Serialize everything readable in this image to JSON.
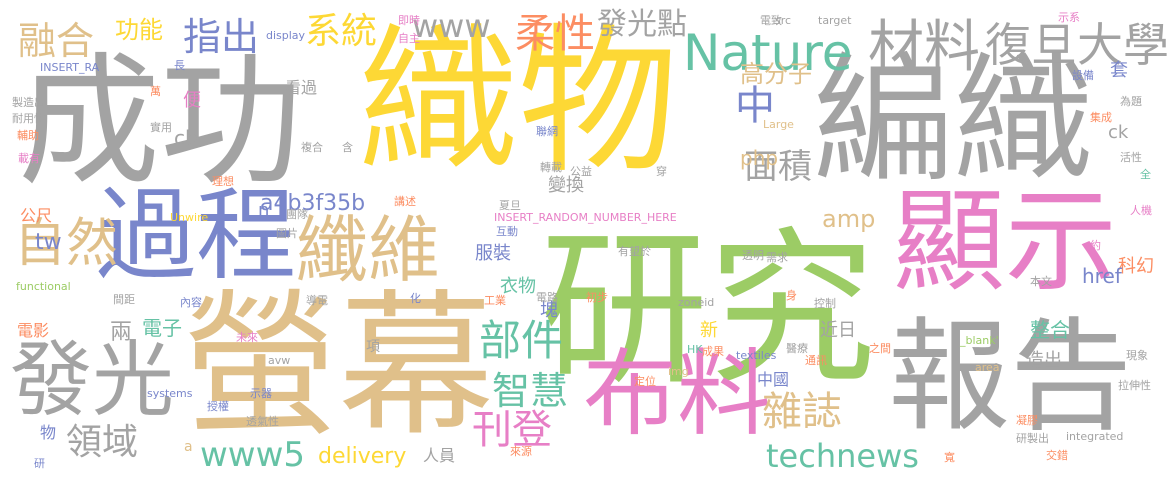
{
  "palette": {
    "gray": "#a3a3a3",
    "yellow": "#fdd835",
    "green": "#9ccc65",
    "tan": "#e0c08a",
    "pink": "#e77fc6",
    "blue": "#7986cb",
    "teal": "#66c2a5",
    "orange": "#fc8d62"
  },
  "words": [
    {
      "text": "成功",
      "color": "gray"
    },
    {
      "text": "織物",
      "color": "yellow"
    },
    {
      "text": "編織",
      "color": "gray"
    },
    {
      "text": "研究",
      "color": "green"
    },
    {
      "text": "螢幕",
      "color": "tan"
    },
    {
      "text": "顯示",
      "color": "pink"
    },
    {
      "text": "報告",
      "color": "gray"
    },
    {
      "text": "過程",
      "color": "blue"
    },
    {
      "text": "布料",
      "color": "pink"
    },
    {
      "text": "發光",
      "color": "gray"
    },
    {
      "text": "纖維",
      "color": "tan"
    },
    {
      "text": "Nature",
      "color": "teal"
    },
    {
      "text": "材料",
      "color": "gray"
    },
    {
      "text": "復旦大學",
      "color": "gray"
    },
    {
      "text": "自然",
      "color": "tan"
    },
    {
      "text": "部件",
      "color": "teal"
    },
    {
      "text": "系統",
      "color": "yellow"
    },
    {
      "text": "柔性",
      "color": "orange"
    },
    {
      "text": "融合",
      "color": "tan"
    },
    {
      "text": "指出",
      "color": "blue"
    },
    {
      "text": "面積",
      "color": "gray"
    },
    {
      "text": "刊登",
      "color": "pink"
    },
    {
      "text": "雜誌",
      "color": "tan"
    },
    {
      "text": "智慧",
      "color": "teal"
    },
    {
      "text": "www5",
      "color": "teal"
    },
    {
      "text": "technews",
      "color": "teal"
    },
    {
      "text": "領域",
      "color": "gray"
    },
    {
      "text": "中",
      "color": "blue"
    },
    {
      "text": "www",
      "color": "gray"
    },
    {
      "text": "發光點",
      "color": "gray"
    },
    {
      "text": "功能",
      "color": "yellow"
    },
    {
      "text": "a4b3f35b",
      "color": "blue"
    },
    {
      "text": "高分子",
      "color": "tan"
    },
    {
      "text": "delivery",
      "color": "yellow"
    },
    {
      "text": "php",
      "color": "tan"
    },
    {
      "text": "amp",
      "color": "tan"
    },
    {
      "text": "tw",
      "color": "blue"
    },
    {
      "text": "服裝",
      "color": "blue"
    },
    {
      "text": "變換",
      "color": "gray"
    },
    {
      "text": "衣物",
      "color": "teal"
    },
    {
      "text": "塊",
      "color": "blue"
    },
    {
      "text": "新",
      "color": "yellow"
    },
    {
      "text": "電子",
      "color": "teal"
    },
    {
      "text": "兩",
      "color": "gray"
    },
    {
      "text": "cb",
      "color": "gray"
    },
    {
      "text": "整合",
      "color": "teal"
    },
    {
      "text": "科幻",
      "color": "orange"
    },
    {
      "text": "造出",
      "color": "gray"
    },
    {
      "text": "href",
      "color": "blue"
    },
    {
      "text": "近日",
      "color": "gray"
    },
    {
      "text": "公尺",
      "color": "orange"
    },
    {
      "text": "電影",
      "color": "orange"
    },
    {
      "text": "ck",
      "color": "gray"
    },
    {
      "text": "套",
      "color": "blue"
    },
    {
      "text": "便",
      "color": "pink"
    },
    {
      "text": "看過",
      "color": "gray"
    },
    {
      "text": "n",
      "color": "blue"
    },
    {
      "text": "物",
      "color": "blue"
    },
    {
      "text": "中國",
      "color": "blue"
    },
    {
      "text": "人員",
      "color": "gray"
    },
    {
      "text": "項",
      "color": "gray"
    },
    {
      "text": "a",
      "color": "tan"
    },
    {
      "text": "INSERT_RANDOM_NUMBER_HERE",
      "color": "pink"
    },
    {
      "text": "INSERT_RA",
      "color": "blue"
    },
    {
      "text": "Unwire",
      "color": "yellow"
    },
    {
      "text": "functional",
      "color": "green"
    },
    {
      "text": "display",
      "color": "blue"
    },
    {
      "text": "target",
      "color": "gray"
    },
    {
      "text": "src",
      "color": "gray"
    },
    {
      "text": "Large",
      "color": "tan"
    },
    {
      "text": "textiles",
      "color": "blue"
    },
    {
      "text": "systems",
      "color": "blue"
    },
    {
      "text": "integrated",
      "color": "gray"
    },
    {
      "text": "avw",
      "color": "gray"
    },
    {
      "text": "img",
      "color": "tan"
    },
    {
      "text": "zoneid",
      "color": "gray"
    },
    {
      "text": "HK",
      "color": "teal"
    },
    {
      "text": "area",
      "color": "tan"
    },
    {
      "text": "_blank'",
      "color": "green"
    },
    {
      "text": "製造出",
      "color": "gray"
    },
    {
      "text": "耐用性",
      "color": "gray"
    },
    {
      "text": "輔助",
      "color": "orange"
    },
    {
      "text": "載有",
      "color": "pink"
    },
    {
      "text": "複合",
      "color": "gray"
    },
    {
      "text": "理想",
      "color": "orange"
    },
    {
      "text": "團隊",
      "color": "gray"
    },
    {
      "text": "圖片",
      "color": "gray"
    },
    {
      "text": "內容",
      "color": "blue"
    },
    {
      "text": "間距",
      "color": "gray"
    },
    {
      "text": "未來",
      "color": "pink"
    },
    {
      "text": "示器",
      "color": "blue"
    },
    {
      "text": "授權",
      "color": "blue"
    },
    {
      "text": "透氣性",
      "color": "gray"
    },
    {
      "text": "研",
      "color": "blue"
    },
    {
      "text": "導電",
      "color": "gray"
    },
    {
      "text": "化",
      "color": "blue"
    },
    {
      "text": "工業",
      "color": "orange"
    },
    {
      "text": "互動",
      "color": "blue"
    },
    {
      "text": "夏旦",
      "color": "gray"
    },
    {
      "text": "電路",
      "color": "gray"
    },
    {
      "text": "初步",
      "color": "orange"
    },
    {
      "text": "有望於",
      "color": "gray"
    },
    {
      "text": "成果",
      "color": "orange"
    },
    {
      "text": "定位",
      "color": "orange"
    },
    {
      "text": "來源",
      "color": "orange"
    },
    {
      "text": "即時",
      "color": "pink"
    },
    {
      "text": "自主",
      "color": "pink"
    },
    {
      "text": "聯網",
      "color": "blue"
    },
    {
      "text": "轉載",
      "color": "gray"
    },
    {
      "text": "公益",
      "color": "gray"
    },
    {
      "text": "穿",
      "color": "gray"
    },
    {
      "text": "講述",
      "color": "orange"
    },
    {
      "text": "實用",
      "color": "gray"
    },
    {
      "text": "萬",
      "color": "orange"
    },
    {
      "text": "長",
      "color": "blue"
    },
    {
      "text": "電致",
      "color": "gray"
    },
    {
      "text": "示系",
      "color": "pink"
    },
    {
      "text": "設備",
      "color": "blue"
    },
    {
      "text": "為題",
      "color": "gray"
    },
    {
      "text": "集成",
      "color": "orange"
    },
    {
      "text": "活性",
      "color": "gray"
    },
    {
      "text": "全",
      "color": "teal"
    },
    {
      "text": "人機",
      "color": "pink"
    },
    {
      "text": "約",
      "color": "pink"
    },
    {
      "text": "透明",
      "color": "gray"
    },
    {
      "text": "需求",
      "color": "gray"
    },
    {
      "text": "身",
      "color": "orange"
    },
    {
      "text": "控制",
      "color": "gray"
    },
    {
      "text": "醫療",
      "color": "gray"
    },
    {
      "text": "通訊",
      "color": "orange"
    },
    {
      "text": "之間",
      "color": "orange"
    },
    {
      "text": "本文",
      "color": "gray"
    },
    {
      "text": "現象",
      "color": "gray"
    },
    {
      "text": "拉伸性",
      "color": "gray"
    },
    {
      "text": "凝膠",
      "color": "orange"
    },
    {
      "text": "研製出",
      "color": "gray"
    },
    {
      "text": "交錯",
      "color": "orange"
    },
    {
      "text": "寬",
      "color": "orange"
    },
    {
      "text": "含",
      "color": "gray"
    }
  ]
}
